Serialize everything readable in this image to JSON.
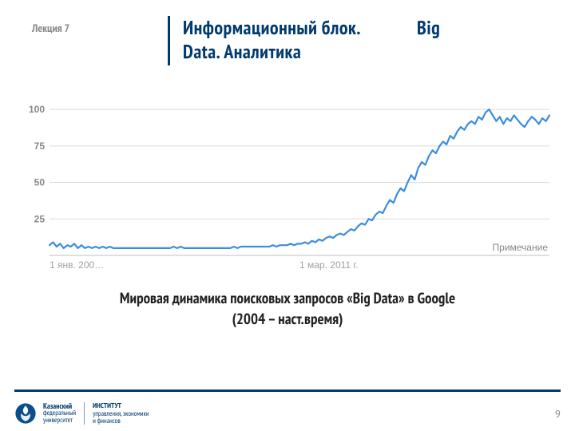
{
  "header": {
    "lecture_label": "Лекция 7",
    "title_line1_a": "Информационный блок.",
    "title_line1_b": "Big",
    "title_line2": "Data. Аналитика",
    "title_color": "#003a6e"
  },
  "chart": {
    "type": "line",
    "line_color": "#3b8ede",
    "line_width": 2.2,
    "grid_color": "#d9d9d9",
    "axis_color": "#bfbfbf",
    "background_color": "#ffffff",
    "ylim": [
      0,
      105
    ],
    "ytick_values": [
      25,
      50,
      75,
      100
    ],
    "ytick_color": "#8c97a6",
    "xticks": [
      {
        "pos": 0.0,
        "label": "1 янв. 200…"
      },
      {
        "pos": 0.5,
        "label": "1 мар. 2011 г."
      }
    ],
    "note_label": "Примечание",
    "series": [
      7,
      9,
      6,
      8,
      5,
      7,
      6,
      8,
      5,
      7,
      5,
      6,
      5,
      6,
      5,
      6,
      5,
      6,
      5,
      5,
      5,
      5,
      5,
      5,
      5,
      5,
      5,
      5,
      5,
      5,
      5,
      5,
      5,
      5,
      5,
      6,
      5,
      6,
      5,
      5,
      5,
      5,
      5,
      5,
      5,
      5,
      5,
      5,
      5,
      5,
      5,
      5,
      6,
      5,
      6,
      6,
      6,
      6,
      6,
      6,
      6,
      6,
      6,
      7,
      6,
      7,
      7,
      7,
      8,
      7,
      8,
      8,
      9,
      8,
      10,
      9,
      11,
      10,
      12,
      13,
      12,
      14,
      15,
      14,
      16,
      18,
      17,
      20,
      22,
      21,
      25,
      24,
      28,
      30,
      29,
      34,
      38,
      36,
      42,
      46,
      44,
      50,
      55,
      52,
      60,
      64,
      62,
      68,
      72,
      70,
      75,
      78,
      76,
      82,
      80,
      85,
      88,
      86,
      90,
      92,
      90,
      95,
      93,
      98,
      100,
      96,
      92,
      95,
      90,
      94,
      92,
      96,
      93,
      90,
      88,
      92,
      95,
      93,
      90,
      94,
      92,
      96
    ]
  },
  "caption": {
    "line1": "Мировая динамика поисковых запросов «Big Data» в Google",
    "line2": "(2004 – наст.время)"
  },
  "footer": {
    "bar_color": "#003a6e",
    "university_line1": "Казанский",
    "university_line2": "федеральный",
    "university_line3": "университет",
    "institute_line1": "ИНСТИТУТ",
    "institute_line2": "управления, экономики",
    "institute_line3": "и финансов",
    "page_number": "9",
    "logo_color": "#0b4f8a"
  }
}
